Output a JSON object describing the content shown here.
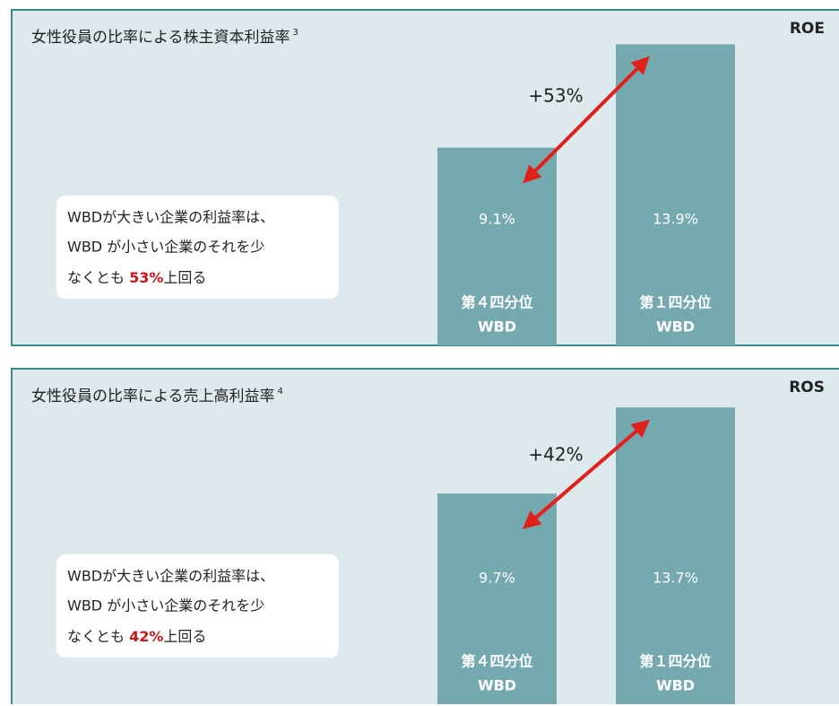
{
  "chart_data": [
    {
      "type": "bar",
      "title": "女性役員の比率による株主資本利益率",
      "title_note": "3",
      "metric": "ROE",
      "categories": [
        [
          "第４四分位",
          "WBD"
        ],
        [
          "第１四分位",
          "WBD"
        ]
      ],
      "values": [
        9.1,
        13.9
      ],
      "value_labels": [
        "9.1%",
        "13.9%"
      ],
      "color": "#75a9b0",
      "annotation": "+53%",
      "callout_lines": [
        "WBDが大きい企業の利益率は、",
        "WBD が小さい企業のそれを少"
      ],
      "callout_end": [
        "なくとも ",
        "53%",
        "上回る"
      ]
    },
    {
      "type": "bar",
      "title": "女性役員の比率による売上高利益率",
      "title_note": "4",
      "metric": "ROS",
      "categories": [
        [
          "第４四分位",
          "WBD"
        ],
        [
          "第１四分位",
          "WBD"
        ]
      ],
      "values": [
        9.7,
        13.7
      ],
      "value_labels": [
        "9.7%",
        "13.7%"
      ],
      "color": "#75a9b0",
      "annotation": "+42%",
      "callout_lines": [
        "WBDが大きい企業の利益率は、",
        "WBD が小さい企業のそれを少"
      ],
      "callout_end": [
        "なくとも ",
        "42%",
        "上回る"
      ]
    }
  ]
}
